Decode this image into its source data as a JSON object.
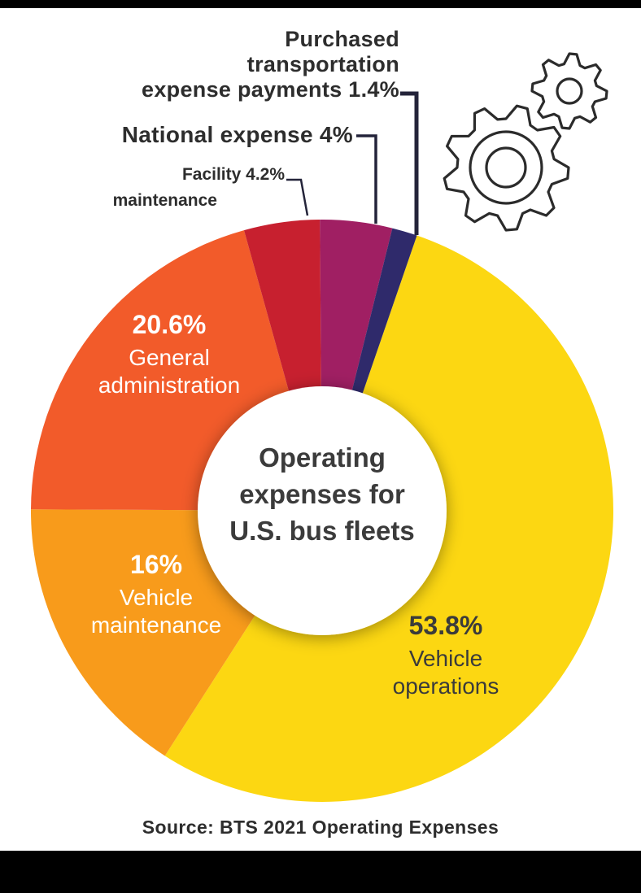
{
  "colors": {
    "page_background": "#000000",
    "canvas_background": "#ffffff",
    "leader_line": "#24243a",
    "dark_text": "#3b3b3b",
    "callout_text": "#2d2d2d"
  },
  "chart_data": {
    "type": "pie",
    "donut": true,
    "title": "Operating expenses for U.S. bus fleets",
    "rotation_deg": 19,
    "unit": "%",
    "legend_position": "none",
    "slices": [
      {
        "label": "Vehicle operations",
        "value": 53.8,
        "display": "53.8%",
        "color": "#FCD712"
      },
      {
        "label": "Vehicle maintenance",
        "value": 16,
        "display": "16%",
        "color": "#F89B1B"
      },
      {
        "label": "General administration",
        "value": 20.6,
        "display": "20.6%",
        "color": "#F25B2A"
      },
      {
        "label": "Facility maintenance",
        "value": 4.2,
        "display": "4.2%",
        "color": "#C7202F"
      },
      {
        "label": "National expense",
        "value": 4,
        "display": "4%",
        "color": "#A01F63"
      },
      {
        "label": "Purchased transportation expense payments",
        "value": 1.4,
        "display": "1.4%",
        "color": "#2F2A6B"
      }
    ],
    "source": "Source: BTS 2021 Operating Expenses"
  },
  "center_label": {
    "lines": [
      "Operating",
      "expenses for",
      "U.S. bus fleets"
    ]
  },
  "callouts": {
    "purchased": {
      "line1": "Purchased",
      "line2": "transportation",
      "line3": "expense payments 1.4%"
    },
    "national": {
      "text": "National expense 4%"
    },
    "facility": {
      "line1": "Facility 4.2%",
      "line2": "maintenance"
    }
  },
  "slice_labels": {
    "general_admin": {
      "pct": "20.6%",
      "line1": "General",
      "line2": "administration"
    },
    "vehicle_maint": {
      "pct": "16%",
      "line1": "Vehicle",
      "line2": "maintenance"
    },
    "vehicle_ops": {
      "pct": "53.8%",
      "line1": "Vehicle",
      "line2": "operations"
    }
  }
}
